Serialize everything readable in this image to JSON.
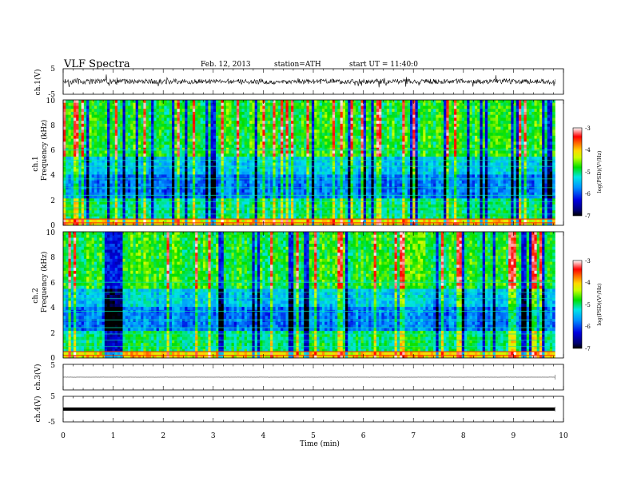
{
  "header": {
    "title": "VLF  Spectra",
    "date": "Feb. 12, 2013",
    "station": "station=ATH",
    "start": "start  UT =   11:40:0"
  },
  "chart_data": [
    {
      "type": "line",
      "name": "ch1-waveform",
      "ylabel": "ch.1(V)",
      "ylim": [
        -5,
        5
      ],
      "y_ticks": [
        "5",
        "-5"
      ],
      "xlim": [
        0,
        10
      ],
      "data_end_x": 9.83,
      "baseline": 0,
      "amplitude": 1
    },
    {
      "type": "heatmap",
      "name": "ch1-spectrogram",
      "ylabel_line1": "ch.1",
      "ylabel_line2": "Frequency (kHz)",
      "ylim": [
        0,
        10
      ],
      "y_ticks": [
        "0",
        "2",
        "4",
        "6",
        "8",
        "10"
      ],
      "xlim": [
        0,
        10
      ],
      "data_end_x": 9.83,
      "colorbar": {
        "label": "log(PSD)(V²/Hz)",
        "range": [
          -7,
          -3
        ],
        "ticks": [
          "-3",
          "-4",
          "-5",
          "-6",
          "-7"
        ]
      }
    },
    {
      "type": "heatmap",
      "name": "ch2-spectrogram",
      "ylabel_line1": "ch.2",
      "ylabel_line2": "Frequency (kHz)",
      "ylim": [
        0,
        10
      ],
      "y_ticks": [
        "0",
        "2",
        "4",
        "6",
        "8",
        "10"
      ],
      "xlim": [
        0,
        10
      ],
      "data_end_x": 9.83,
      "colorbar": {
        "label": "log(PSD)(V²/Hz)",
        "range": [
          -7,
          -3
        ],
        "ticks": [
          "-3",
          "-4",
          "-5",
          "-6",
          "-7"
        ]
      }
    },
    {
      "type": "line",
      "name": "ch3-waveform",
      "ylabel": "ch.3(V)",
      "ylim": [
        -5,
        5
      ],
      "y_ticks": [
        "5"
      ],
      "xlim": [
        0,
        10
      ],
      "data_end_x": 9.83,
      "baseline": 0,
      "amplitude": 0.02
    },
    {
      "type": "line",
      "name": "ch4-waveform",
      "ylabel": "ch.4(V)",
      "ylim": [
        -5,
        5
      ],
      "y_ticks": [
        "5",
        "-5"
      ],
      "xlim": [
        0,
        10
      ],
      "xlabel": "Time  (min)",
      "x_ticks": [
        "0",
        "1",
        "2",
        "3",
        "4",
        "5",
        "6",
        "7",
        "8",
        "9",
        "10"
      ],
      "data_end_x": 9.83,
      "baseline": 0,
      "amplitude": 0.35
    }
  ]
}
